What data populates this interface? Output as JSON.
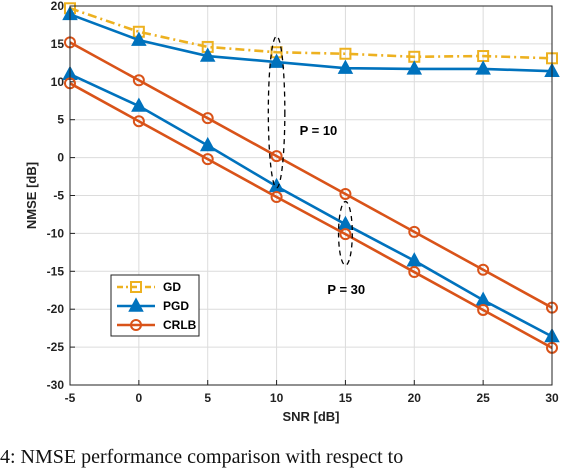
{
  "chart_data": {
    "type": "line",
    "xlabel": "SNR [dB]",
    "ylabel": "NMSE [dB]",
    "xlim": [
      -5,
      30
    ],
    "ylim": [
      -30,
      20
    ],
    "xticks": [
      -5,
      0,
      5,
      10,
      15,
      20,
      25,
      30
    ],
    "yticks": [
      -30,
      -25,
      -20,
      -15,
      -10,
      -5,
      0,
      5,
      10,
      15,
      20
    ],
    "grid": true,
    "legend_position": "bottom-left",
    "x": [
      -5,
      0,
      5,
      10,
      15,
      20,
      25,
      30
    ],
    "series": [
      {
        "name": "GD",
        "color": "#EDB120",
        "style": "dash-dot",
        "marker": "square",
        "group": "P = 10",
        "values": [
          19.7,
          16.6,
          14.6,
          13.9,
          13.7,
          13.3,
          13.4,
          13.1
        ]
      },
      {
        "name": "PGD",
        "color": "#0072BD",
        "style": "solid",
        "marker": "triangle",
        "group": "P = 10",
        "values": [
          18.9,
          15.5,
          13.4,
          12.6,
          11.8,
          11.7,
          11.7,
          11.4
        ]
      },
      {
        "name": "CRLB",
        "color": "#D95319",
        "style": "solid",
        "marker": "circle",
        "group": "P = 10",
        "values": [
          15.2,
          10.2,
          5.2,
          0.2,
          -4.8,
          -9.8,
          -14.8,
          -19.8
        ]
      },
      {
        "name": "PGD",
        "color": "#0072BD",
        "style": "solid",
        "marker": "triangle",
        "group": "P = 30",
        "values": [
          11.0,
          6.8,
          1.6,
          -3.8,
          -8.8,
          -13.6,
          -18.8,
          -23.6
        ]
      },
      {
        "name": "CRLB",
        "color": "#D95319",
        "style": "solid",
        "marker": "circle",
        "group": "P = 30",
        "values": [
          9.8,
          4.8,
          -0.2,
          -5.2,
          -10.1,
          -15.1,
          -20.1,
          -25.1
        ]
      }
    ],
    "annotations": [
      {
        "text": "P = 10",
        "ellipse_center": [
          10,
          6
        ],
        "ellipse_radii": [
          0.6,
          10
        ]
      },
      {
        "text": "P = 30",
        "ellipse_center": [
          15,
          -10
        ],
        "ellipse_radii": [
          0.5,
          4.2
        ]
      }
    ],
    "legend": [
      {
        "label": "GD",
        "color": "#EDB120",
        "marker": "square",
        "style": "dash-dot"
      },
      {
        "label": "PGD",
        "color": "#0072BD",
        "marker": "triangle",
        "style": "solid"
      },
      {
        "label": "CRLB",
        "color": "#D95319",
        "marker": "circle",
        "style": "solid"
      }
    ]
  },
  "caption": "4: NMSE performance comparison with respect to"
}
